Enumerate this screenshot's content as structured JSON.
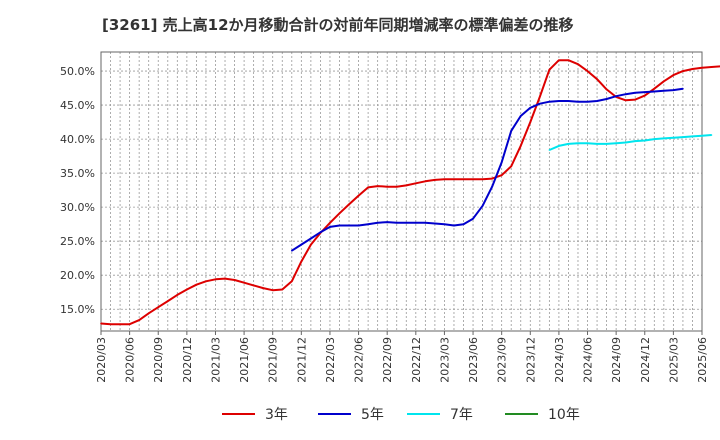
{
  "colors": {
    "background": "#ffffff",
    "plot_bg": "#ffffff",
    "grid": "#999999",
    "axis": "#666666",
    "text": "#333333"
  },
  "chart_data": {
    "type": "line",
    "title": "[3261]  売上高12か月移動合計の対前年同期増減率の標準偏差の推移",
    "xlabel": "",
    "ylabel": "",
    "ylim": [
      0.118,
      0.528
    ],
    "yticks": [
      0.15,
      0.2,
      0.25,
      0.3,
      0.35,
      0.4,
      0.45,
      0.5
    ],
    "ytick_labels": [
      "15.0%",
      "20.0%",
      "25.0%",
      "30.0%",
      "35.0%",
      "40.0%",
      "45.0%",
      "50.0%"
    ],
    "xticks": [
      "2020/03",
      "2020/06",
      "2020/09",
      "2020/12",
      "2021/03",
      "2021/06",
      "2021/09",
      "2021/12",
      "2022/03",
      "2022/06",
      "2022/09",
      "2022/12",
      "2023/03",
      "2023/06",
      "2023/09",
      "2023/12",
      "2024/03",
      "2024/06",
      "2024/09",
      "2024/12",
      "2025/03",
      "2025/06"
    ],
    "start_month": "2020/03",
    "legend_position": "bottom",
    "grid": true,
    "series": [
      {
        "name": "3年",
        "color": "#dd0000",
        "start_index": 0,
        "values": [
          0.129,
          0.128,
          0.128,
          0.128,
          0.134,
          0.144,
          0.153,
          0.162,
          0.171,
          0.179,
          0.186,
          0.191,
          0.194,
          0.195,
          0.193,
          0.189,
          0.185,
          0.181,
          0.178,
          0.179,
          0.191,
          0.22,
          0.245,
          0.262,
          0.277,
          0.291,
          0.304,
          0.317,
          0.329,
          0.331,
          0.33,
          0.33,
          0.332,
          0.335,
          0.338,
          0.34,
          0.341,
          0.341,
          0.341,
          0.341,
          0.341,
          0.342,
          0.347,
          0.36,
          0.39,
          0.425,
          0.462,
          0.502,
          0.516,
          0.516,
          0.51,
          0.5,
          0.488,
          0.473,
          0.462,
          0.457,
          0.458,
          0.464,
          0.474,
          0.485,
          0.494,
          0.5,
          0.503,
          0.505,
          0.506,
          0.507
        ]
      },
      {
        "name": "5年",
        "color": "#0000cc",
        "start_index": 20,
        "values": [
          0.236,
          0.245,
          0.254,
          0.263,
          0.271,
          0.273,
          0.273,
          0.273,
          0.275,
          0.277,
          0.278,
          0.277,
          0.277,
          0.277,
          0.277,
          0.276,
          0.275,
          0.273,
          0.275,
          0.283,
          0.302,
          0.33,
          0.366,
          0.412,
          0.434,
          0.446,
          0.452,
          0.455,
          0.456,
          0.456,
          0.455,
          0.455,
          0.456,
          0.459,
          0.463,
          0.466,
          0.468,
          0.469,
          0.47,
          0.471,
          0.472,
          0.474
        ]
      },
      {
        "name": "7年",
        "color": "#00e5ee",
        "start_index": 47,
        "values": [
          0.384,
          0.39,
          0.393,
          0.394,
          0.394,
          0.393,
          0.393,
          0.394,
          0.395,
          0.397,
          0.398,
          0.4,
          0.401,
          0.402,
          0.403,
          0.404,
          0.405,
          0.406
        ]
      },
      {
        "name": "10年",
        "color": "#228B22",
        "start_index": 0,
        "values": []
      }
    ]
  }
}
